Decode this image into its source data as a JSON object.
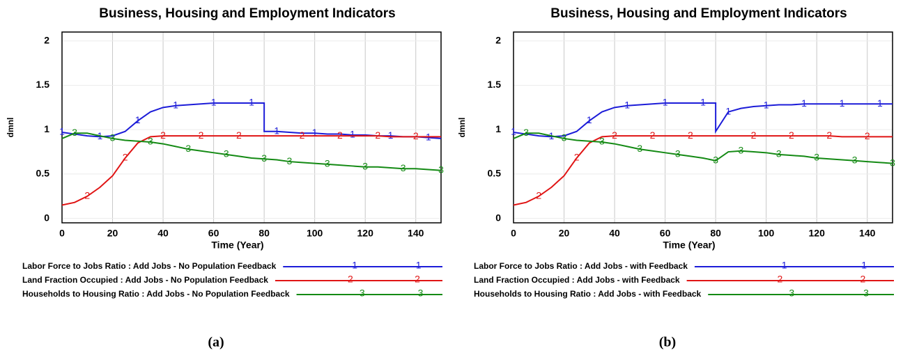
{
  "chart_data": [
    {
      "type": "line",
      "title": "Business, Housing and Employment Indicators",
      "x_label": "Time (Year)",
      "y_label": "dmnl",
      "caption": "(a)",
      "x": [
        0,
        5,
        10,
        15,
        20,
        25,
        30,
        35,
        40,
        45,
        50,
        55,
        60,
        65,
        70,
        75,
        80,
        80,
        85,
        90,
        95,
        100,
        105,
        110,
        115,
        120,
        125,
        130,
        135,
        140,
        145,
        150
      ],
      "xlim": [
        0,
        150
      ],
      "xticks": [
        0,
        20,
        40,
        60,
        80,
        100,
        120,
        140
      ],
      "ylim": [
        -0.05,
        2.1
      ],
      "yticks": [
        0,
        0.5,
        1,
        1.5,
        2
      ],
      "grid": true,
      "series": [
        {
          "name": "Labor Force to Jobs Ratio : Add Jobs - No Population Feedback",
          "marker": "1",
          "color": "#1c1cd8",
          "values": [
            0.97,
            0.95,
            0.93,
            0.92,
            0.93,
            0.98,
            1.1,
            1.2,
            1.25,
            1.27,
            1.28,
            1.29,
            1.3,
            1.3,
            1.3,
            1.3,
            1.3,
            0.98,
            0.98,
            0.97,
            0.96,
            0.96,
            0.95,
            0.95,
            0.94,
            0.94,
            0.93,
            0.93,
            0.92,
            0.92,
            0.91,
            0.9
          ]
        },
        {
          "name": "Land Fraction Occupied : Add Jobs - No Population Feedback",
          "marker": "2",
          "color": "#e01414",
          "values": [
            0.15,
            0.18,
            0.25,
            0.35,
            0.48,
            0.68,
            0.85,
            0.92,
            0.93,
            0.93,
            0.93,
            0.93,
            0.93,
            0.93,
            0.93,
            0.93,
            0.93,
            0.93,
            0.93,
            0.93,
            0.93,
            0.93,
            0.93,
            0.93,
            0.93,
            0.93,
            0.93,
            0.92,
            0.92,
            0.92,
            0.92,
            0.92
          ]
        },
        {
          "name": "Households to Housing Ratio : Add Jobs - No Population Feedback",
          "marker": "3",
          "color": "#148a14",
          "values": [
            0.9,
            0.96,
            0.96,
            0.93,
            0.9,
            0.88,
            0.87,
            0.86,
            0.84,
            0.81,
            0.78,
            0.76,
            0.74,
            0.72,
            0.7,
            0.68,
            0.67,
            0.67,
            0.66,
            0.64,
            0.63,
            0.62,
            0.61,
            0.6,
            0.59,
            0.58,
            0.58,
            0.57,
            0.56,
            0.56,
            0.55,
            0.54
          ]
        }
      ]
    },
    {
      "type": "line",
      "title": "Business, Housing and Employment Indicators",
      "x_label": "Time (Year)",
      "y_label": "dmnl",
      "caption": "(b)",
      "x": [
        0,
        5,
        10,
        15,
        20,
        25,
        30,
        35,
        40,
        45,
        50,
        55,
        60,
        65,
        70,
        75,
        80,
        80,
        85,
        90,
        95,
        100,
        105,
        110,
        115,
        120,
        125,
        130,
        135,
        140,
        145,
        150
      ],
      "xlim": [
        0,
        150
      ],
      "xticks": [
        0,
        20,
        40,
        60,
        80,
        100,
        120,
        140
      ],
      "ylim": [
        -0.05,
        2.1
      ],
      "yticks": [
        0,
        0.5,
        1,
        1.5,
        2
      ],
      "grid": true,
      "series": [
        {
          "name": "Labor Force to Jobs Ratio : Add Jobs - with Feedback",
          "marker": "1",
          "color": "#1c1cd8",
          "values": [
            0.97,
            0.95,
            0.93,
            0.92,
            0.93,
            0.98,
            1.1,
            1.2,
            1.25,
            1.27,
            1.28,
            1.29,
            1.3,
            1.3,
            1.3,
            1.3,
            1.3,
            0.98,
            1.2,
            1.24,
            1.26,
            1.27,
            1.28,
            1.28,
            1.29,
            1.29,
            1.29,
            1.29,
            1.29,
            1.29,
            1.29,
            1.29
          ]
        },
        {
          "name": "Land Fraction Occupied : Add Jobs - with Feedback",
          "marker": "2",
          "color": "#e01414",
          "values": [
            0.15,
            0.18,
            0.25,
            0.35,
            0.48,
            0.68,
            0.85,
            0.92,
            0.93,
            0.93,
            0.93,
            0.93,
            0.93,
            0.93,
            0.93,
            0.93,
            0.93,
            0.93,
            0.93,
            0.93,
            0.93,
            0.93,
            0.93,
            0.93,
            0.93,
            0.93,
            0.93,
            0.92,
            0.92,
            0.92,
            0.92,
            0.92
          ]
        },
        {
          "name": "Households to Housing Ratio : Add Jobs - with Feedback",
          "marker": "3",
          "color": "#148a14",
          "values": [
            0.9,
            0.96,
            0.96,
            0.93,
            0.9,
            0.88,
            0.87,
            0.86,
            0.84,
            0.81,
            0.78,
            0.76,
            0.74,
            0.72,
            0.7,
            0.68,
            0.65,
            0.65,
            0.75,
            0.76,
            0.75,
            0.74,
            0.72,
            0.71,
            0.7,
            0.68,
            0.67,
            0.66,
            0.65,
            0.64,
            0.63,
            0.62
          ]
        }
      ]
    }
  ]
}
